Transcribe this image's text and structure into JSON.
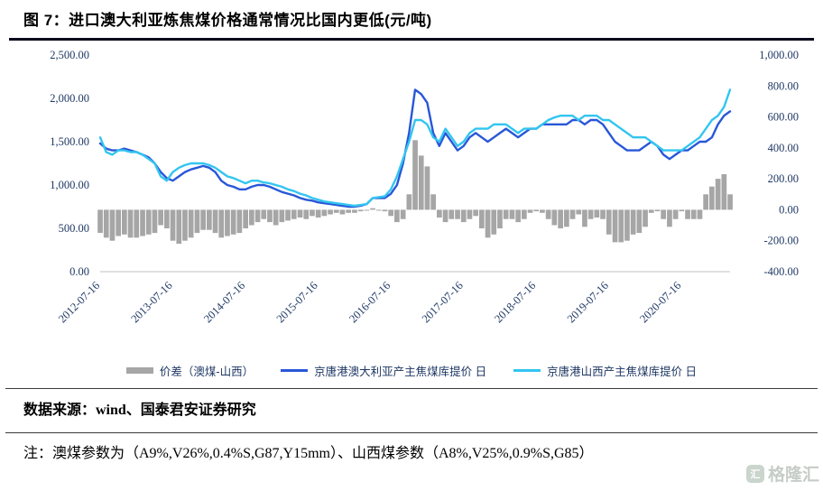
{
  "header": {
    "title": "图 7：进口澳大利亚炼焦煤价格通常情况比国内更低(元/吨)"
  },
  "footer": {
    "source": "数据来源：wind、国泰君安证券研究",
    "note": "注：澳煤参数为（A9%,V26%,0.4%S,G87,Y15mm）、山西煤参数（A8%,V25%,0.9%S,G85）",
    "watermark": "格隆汇",
    "watermark_logo": "汇"
  },
  "chart_data": {
    "type": "bar+line combo, dual y-axis",
    "title": "图 7：进口澳大利亚炼焦煤价格通常情况比国内更低(元/吨)",
    "left_axis": {
      "min": 0,
      "max": 2500,
      "tick_values": [
        0,
        500,
        1000,
        1500,
        2000,
        2500
      ],
      "tick_labels": [
        "0.00",
        "500.00",
        "1,000.00",
        "1,500.00",
        "2,000.00",
        "2,500.00"
      ]
    },
    "right_axis": {
      "min": -400,
      "max": 1000,
      "tick_values": [
        -400,
        -200,
        0,
        200,
        400,
        600,
        800,
        1000
      ],
      "tick_labels": [
        "-400.00",
        "-200.00",
        "0.00",
        "200.00",
        "400.00",
        "600.00",
        "800.00",
        "1,000.00"
      ]
    },
    "x_tick_indices": [
      0,
      12,
      24,
      36,
      48,
      60,
      72,
      84,
      96
    ],
    "x_tick_labels": [
      "2012-07-16",
      "2013-07-16",
      "2014-07-16",
      "2015-07-16",
      "2016-07-16",
      "2017-07-16",
      "2018-07-16",
      "2019-07-16",
      "2020-07-16"
    ],
    "x": [
      "2012-07",
      "2012-08",
      "2012-09",
      "2012-10",
      "2012-11",
      "2012-12",
      "2013-01",
      "2013-02",
      "2013-03",
      "2013-04",
      "2013-05",
      "2013-06",
      "2013-07",
      "2013-08",
      "2013-09",
      "2013-10",
      "2013-11",
      "2013-12",
      "2014-01",
      "2014-02",
      "2014-03",
      "2014-04",
      "2014-05",
      "2014-06",
      "2014-07",
      "2014-08",
      "2014-09",
      "2014-10",
      "2014-11",
      "2014-12",
      "2015-01",
      "2015-02",
      "2015-03",
      "2015-04",
      "2015-05",
      "2015-06",
      "2015-07",
      "2015-08",
      "2015-09",
      "2015-10",
      "2015-11",
      "2015-12",
      "2016-01",
      "2016-02",
      "2016-03",
      "2016-04",
      "2016-05",
      "2016-06",
      "2016-07",
      "2016-08",
      "2016-09",
      "2016-10",
      "2016-11",
      "2016-12",
      "2017-01",
      "2017-02",
      "2017-03",
      "2017-04",
      "2017-05",
      "2017-06",
      "2017-07",
      "2017-08",
      "2017-09",
      "2017-10",
      "2017-11",
      "2017-12",
      "2018-01",
      "2018-02",
      "2018-03",
      "2018-04",
      "2018-05",
      "2018-06",
      "2018-07",
      "2018-08",
      "2018-09",
      "2018-10",
      "2018-11",
      "2018-12",
      "2019-01",
      "2019-02",
      "2019-03",
      "2019-04",
      "2019-05",
      "2019-06",
      "2019-07",
      "2019-08",
      "2019-09",
      "2019-10",
      "2019-11",
      "2019-12",
      "2020-01",
      "2020-02",
      "2020-03",
      "2020-04",
      "2020-05",
      "2020-06",
      "2020-07",
      "2020-08",
      "2020-09",
      "2020-10",
      "2020-11",
      "2020-12",
      "2021-01",
      "2021-02",
      "2021-03"
    ],
    "series": [
      {
        "name": "价差（澳煤-山西）",
        "type": "bar",
        "axis": "right",
        "color": "#a6a6a6",
        "values": [
          -150,
          -180,
          -200,
          -170,
          -160,
          -180,
          -180,
          -170,
          -160,
          -150,
          -100,
          -120,
          -200,
          -220,
          -200,
          -180,
          -150,
          -130,
          -130,
          -150,
          -180,
          -170,
          -160,
          -150,
          -120,
          -100,
          -80,
          -60,
          -80,
          -100,
          -80,
          -70,
          -60,
          -50,
          -60,
          -40,
          -50,
          -40,
          -30,
          -20,
          -30,
          -20,
          -20,
          -10,
          0,
          10,
          0,
          -10,
          -40,
          -80,
          -60,
          100,
          450,
          350,
          280,
          100,
          -50,
          -80,
          -60,
          -60,
          -80,
          -60,
          -40,
          -120,
          -180,
          -160,
          -120,
          -60,
          -60,
          -80,
          -60,
          -20,
          -10,
          -20,
          -60,
          -100,
          -120,
          -110,
          -60,
          -30,
          -110,
          -60,
          -50,
          -60,
          -160,
          -210,
          -210,
          -200,
          -160,
          -150,
          -110,
          -20,
          -10,
          -60,
          -110,
          -60,
          -10,
          -60,
          -60,
          -60,
          100,
          150,
          200,
          230,
          100
        ]
      },
      {
        "name": "京唐港澳大利亚产主焦煤库提价 日",
        "type": "line",
        "axis": "left",
        "color": "#2857d8",
        "values": [
          1480,
          1420,
          1400,
          1400,
          1420,
          1400,
          1380,
          1350,
          1320,
          1250,
          1150,
          1080,
          1050,
          1100,
          1150,
          1180,
          1200,
          1220,
          1200,
          1150,
          1050,
          1000,
          980,
          950,
          950,
          980,
          1000,
          1000,
          980,
          950,
          920,
          900,
          880,
          850,
          830,
          820,
          800,
          790,
          780,
          770,
          760,
          750,
          750,
          760,
          780,
          850,
          850,
          850,
          900,
          1000,
          1250,
          1600,
          2100,
          2050,
          1950,
          1600,
          1450,
          1600,
          1500,
          1400,
          1450,
          1550,
          1600,
          1550,
          1500,
          1550,
          1600,
          1650,
          1600,
          1550,
          1600,
          1650,
          1650,
          1700,
          1700,
          1700,
          1700,
          1700,
          1750,
          1750,
          1700,
          1750,
          1750,
          1700,
          1600,
          1500,
          1450,
          1400,
          1400,
          1400,
          1450,
          1500,
          1450,
          1350,
          1300,
          1350,
          1400,
          1400,
          1450,
          1500,
          1500,
          1550,
          1700,
          1800,
          1850
        ]
      },
      {
        "name": "京唐港山西产主焦煤库提价 日",
        "type": "line",
        "axis": "left",
        "color": "#33c5f0",
        "values": [
          1550,
          1380,
          1350,
          1400,
          1400,
          1380,
          1380,
          1350,
          1300,
          1250,
          1100,
          1050,
          1150,
          1200,
          1230,
          1250,
          1250,
          1250,
          1230,
          1200,
          1150,
          1100,
          1080,
          1050,
          1020,
          1050,
          1050,
          1030,
          1020,
          1000,
          980,
          950,
          930,
          900,
          880,
          850,
          830,
          810,
          800,
          790,
          780,
          770,
          760,
          770,
          780,
          850,
          860,
          870,
          950,
          1100,
          1300,
          1500,
          1750,
          1750,
          1700,
          1550,
          1500,
          1650,
          1550,
          1450,
          1500,
          1600,
          1650,
          1650,
          1650,
          1700,
          1700,
          1700,
          1650,
          1600,
          1650,
          1650,
          1650,
          1700,
          1750,
          1780,
          1800,
          1800,
          1800,
          1750,
          1800,
          1800,
          1800,
          1750,
          1750,
          1700,
          1650,
          1600,
          1550,
          1550,
          1550,
          1500,
          1450,
          1400,
          1400,
          1400,
          1400,
          1450,
          1500,
          1550,
          1650,
          1750,
          1800,
          1900,
          2100
        ]
      }
    ],
    "legend_position": "bottom",
    "grid": false
  }
}
